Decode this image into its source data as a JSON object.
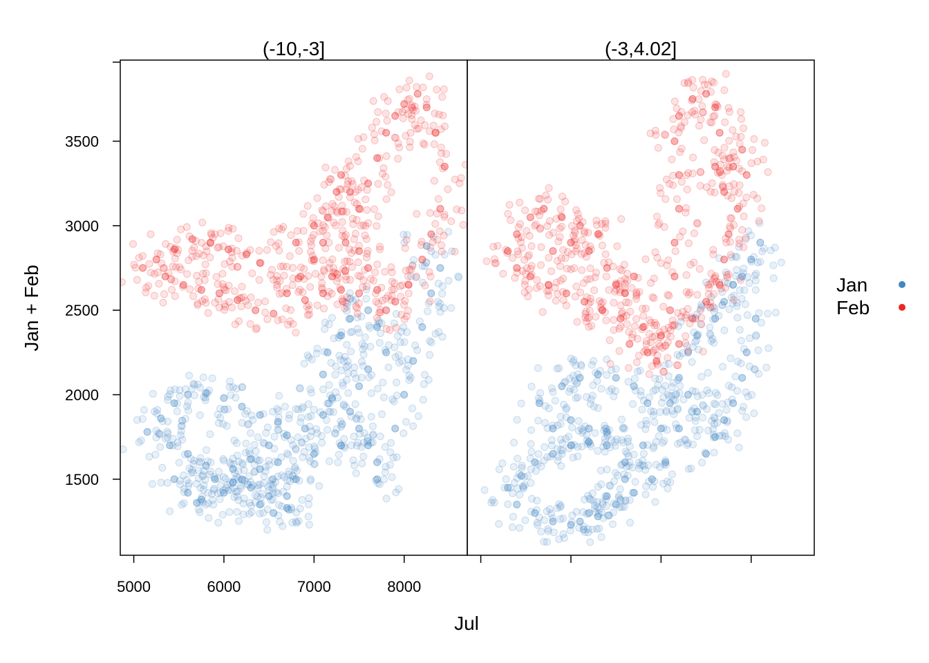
{
  "chart_data": {
    "type": "scatter",
    "xlabel": "Jul",
    "ylabel": "Jan + Feb",
    "xlim": [
      4850,
      8700
    ],
    "ylim": [
      1050,
      3980
    ],
    "x_ticks": [
      5000,
      6000,
      7000,
      8000
    ],
    "y_ticks": [
      1500,
      2000,
      2500,
      3000,
      3500
    ],
    "legend_placement": "right",
    "legend": [
      {
        "label": "Jan",
        "color": "#4287c4"
      },
      {
        "label": "Feb",
        "color": "#ee2525"
      }
    ],
    "panels": [
      {
        "title": "(-10,-3]",
        "series": [
          {
            "name": "Jan",
            "color": "#4287c4",
            "points": [
              [
                5150,
                1780
              ],
              [
                5300,
                1860
              ],
              [
                5450,
                1950
              ],
              [
                5600,
                2000
              ],
              [
                5800,
                2010
              ],
              [
                6000,
                1980
              ],
              [
                6200,
                1930
              ],
              [
                6400,
                1880
              ],
              [
                6600,
                1840
              ],
              [
                5400,
                1700
              ],
              [
                5600,
                1650
              ],
              [
                5800,
                1580
              ],
              [
                5900,
                1500
              ],
              [
                6100,
                1480
              ],
              [
                6300,
                1450
              ],
              [
                6500,
                1400
              ],
              [
                6700,
                1400
              ],
              [
                5450,
                1500
              ],
              [
                5600,
                1420
              ],
              [
                5750,
                1380
              ],
              [
                6000,
                1420
              ],
              [
                6200,
                1500
              ],
              [
                6400,
                1560
              ],
              [
                6600,
                1600
              ],
              [
                6100,
                1560
              ],
              [
                6300,
                1620
              ],
              [
                6500,
                1700
              ],
              [
                6700,
                1760
              ],
              [
                6900,
                1800
              ],
              [
                7100,
                1880
              ],
              [
                7200,
                1980
              ],
              [
                7100,
                2120
              ],
              [
                7150,
                2250
              ],
              [
                7300,
                2350
              ],
              [
                7400,
                2450
              ],
              [
                7600,
                2500
              ],
              [
                7700,
                2400
              ],
              [
                7800,
                2250
              ],
              [
                7600,
                2150
              ],
              [
                7500,
                2050
              ],
              [
                7400,
                1900
              ],
              [
                7500,
                1800
              ],
              [
                7600,
                1700
              ],
              [
                7700,
                1600
              ],
              [
                7700,
                1500
              ],
              [
                7900,
                1800
              ],
              [
                8000,
                2000
              ],
              [
                8100,
                2200
              ],
              [
                8200,
                2400
              ],
              [
                8300,
                2600
              ],
              [
                8400,
                2750
              ],
              [
                8250,
                2880
              ],
              [
                6550,
                1300
              ],
              [
                6700,
                1330
              ],
              [
                6400,
                1350
              ],
              [
                5700,
                1360
              ],
              [
                6800,
                1500
              ],
              [
                7000,
                1650
              ],
              [
                7300,
                1700
              ]
            ]
          },
          {
            "name": "Feb",
            "color": "#ee2525",
            "points": [
              [
                5100,
                2750
              ],
              [
                5250,
                2800
              ],
              [
                5450,
                2860
              ],
              [
                5650,
                2920
              ],
              [
                5850,
                2900
              ],
              [
                6050,
                2860
              ],
              [
                6250,
                2830
              ],
              [
                6400,
                2780
              ],
              [
                5350,
                2700
              ],
              [
                5550,
                2650
              ],
              [
                5750,
                2620
              ],
              [
                5950,
                2600
              ],
              [
                6150,
                2560
              ],
              [
                6350,
                2500
              ],
              [
                6550,
                2480
              ],
              [
                6700,
                2600
              ],
              [
                6850,
                2700
              ],
              [
                7000,
                2800
              ],
              [
                7100,
                2900
              ],
              [
                7150,
                3050
              ],
              [
                7250,
                3200
              ],
              [
                7300,
                3300
              ],
              [
                7400,
                3200
              ],
              [
                7500,
                3100
              ],
              [
                7600,
                3250
              ],
              [
                7700,
                3400
              ],
              [
                7800,
                3550
              ],
              [
                7900,
                3650
              ],
              [
                8000,
                3720
              ],
              [
                8150,
                3780
              ],
              [
                8250,
                3700
              ],
              [
                8350,
                3550
              ],
              [
                8450,
                3350
              ],
              [
                8400,
                3100
              ],
              [
                8300,
                2950
              ],
              [
                8200,
                2800
              ],
              [
                8050,
                2650
              ],
              [
                7900,
                2550
              ],
              [
                7800,
                2500
              ],
              [
                7700,
                2620
              ],
              [
                7600,
                2750
              ],
              [
                7500,
                2850
              ],
              [
                7350,
                2900
              ],
              [
                6900,
                2560
              ],
              [
                7100,
                2600
              ],
              [
                7300,
                2620
              ],
              [
                7500,
                2600
              ],
              [
                6800,
                2900
              ],
              [
                7000,
                3000
              ],
              [
                7200,
                2700
              ]
            ]
          }
        ]
      },
      {
        "title": "(-3,4.02]",
        "series": [
          {
            "name": "Jan",
            "color": "#4287c4",
            "points": [
              [
                5300,
                1450
              ],
              [
                5450,
                1520
              ],
              [
                5600,
                1600
              ],
              [
                5800,
                1650
              ],
              [
                6000,
                1700
              ],
              [
                6200,
                1720
              ],
              [
                6400,
                1780
              ],
              [
                5400,
                1350
              ],
              [
                5600,
                1300
              ],
              [
                5800,
                1250
              ],
              [
                6000,
                1230
              ],
              [
                6200,
                1300
              ],
              [
                6400,
                1400
              ],
              [
                6600,
                1500
              ],
              [
                5650,
                1950
              ],
              [
                5900,
                2050
              ],
              [
                6100,
                2100
              ],
              [
                6300,
                2120
              ],
              [
                6500,
                2100
              ],
              [
                6700,
                2050
              ],
              [
                6850,
                1950
              ],
              [
                5800,
                1800
              ],
              [
                6000,
                1850
              ],
              [
                6200,
                1800
              ],
              [
                6400,
                1700
              ],
              [
                6600,
                1600
              ],
              [
                6800,
                1700
              ],
              [
                7000,
                1800
              ],
              [
                7100,
                1950
              ],
              [
                7200,
                2100
              ],
              [
                7300,
                2250
              ],
              [
                7400,
                2350
              ],
              [
                7600,
                2450
              ],
              [
                7700,
                2550
              ],
              [
                7800,
                2650
              ],
              [
                7900,
                2700
              ],
              [
                8000,
                2800
              ],
              [
                8100,
                2900
              ],
              [
                8050,
                2450
              ],
              [
                7950,
                2250
              ],
              [
                7900,
                2100
              ],
              [
                7800,
                1950
              ],
              [
                7700,
                1850
              ],
              [
                7600,
                1750
              ],
              [
                7500,
                1650
              ],
              [
                7400,
                1900
              ],
              [
                7300,
                2000
              ],
              [
                7200,
                1800
              ],
              [
                7050,
                1600
              ],
              [
                6900,
                1500
              ],
              [
                6700,
                1420
              ],
              [
                6500,
                1350
              ],
              [
                6300,
                1280
              ],
              [
                6100,
                1250
              ]
            ]
          },
          {
            "name": "Feb",
            "color": "#ee2525",
            "points": [
              [
                5300,
                2850
              ],
              [
                5400,
                2950
              ],
              [
                5550,
                3050
              ],
              [
                5700,
                3100
              ],
              [
                5900,
                3050
              ],
              [
                6100,
                3000
              ],
              [
                6300,
                2950
              ],
              [
                5400,
                2750
              ],
              [
                5550,
                2700
              ],
              [
                5750,
                2650
              ],
              [
                5950,
                2600
              ],
              [
                6150,
                2550
              ],
              [
                6350,
                2500
              ],
              [
                6550,
                2450
              ],
              [
                6650,
                2300
              ],
              [
                6850,
                2250
              ],
              [
                7000,
                2350
              ],
              [
                7100,
                2500
              ],
              [
                7150,
                2700
              ],
              [
                7150,
                2900
              ],
              [
                7200,
                3100
              ],
              [
                7200,
                3300
              ],
              [
                7150,
                3500
              ],
              [
                7200,
                3650
              ],
              [
                7350,
                3750
              ],
              [
                7500,
                3780
              ],
              [
                7600,
                3700
              ],
              [
                7650,
                3550
              ],
              [
                7600,
                3350
              ],
              [
                7700,
                3200
              ],
              [
                7800,
                3350
              ],
              [
                7900,
                3450
              ],
              [
                7950,
                3300
              ],
              [
                7850,
                3100
              ],
              [
                7750,
                2950
              ],
              [
                7700,
                2800
              ],
              [
                7650,
                2650
              ],
              [
                7500,
                2550
              ],
              [
                7350,
                2450
              ],
              [
                7200,
                2300
              ],
              [
                6950,
                2200
              ],
              [
                6800,
                2400
              ],
              [
                6600,
                2600
              ],
              [
                6400,
                2750
              ],
              [
                6200,
                2850
              ],
              [
                6000,
                2900
              ],
              [
                5800,
                2850
              ],
              [
                6500,
                2650
              ],
              [
                6700,
                2700
              ]
            ]
          }
        ]
      }
    ]
  }
}
